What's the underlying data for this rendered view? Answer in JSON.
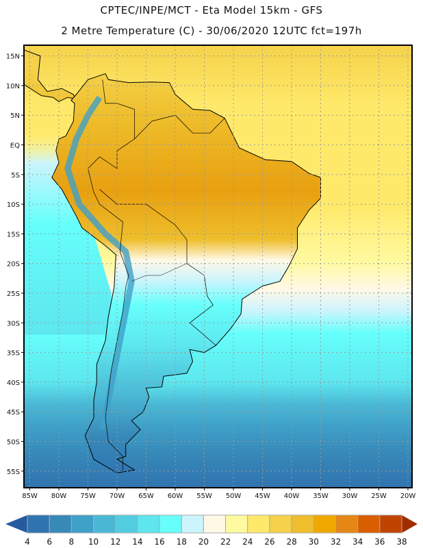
{
  "header": {
    "title": "CPTEC/INPE/MCT -  Eta Model 15km - GFS",
    "subtitle": "2 Metre Temperature (C) - 30/06/2020 12UTC fct=197h"
  },
  "map": {
    "lat_labels": [
      "15N",
      "10N",
      "5N",
      "EQ",
      "5S",
      "10S",
      "15S",
      "20S",
      "25S",
      "30S",
      "35S",
      "40S",
      "45S",
      "50S",
      "55S"
    ],
    "lat_values": [
      15,
      10,
      5,
      0,
      -5,
      -10,
      -15,
      -20,
      -25,
      -30,
      -35,
      -40,
      -45,
      -50,
      -55
    ],
    "lon_labels": [
      "85W",
      "80W",
      "75W",
      "70W",
      "65W",
      "60W",
      "55W",
      "50W",
      "45W",
      "40W",
      "35W",
      "30W",
      "25W",
      "20W"
    ],
    "lon_values": [
      -85,
      -80,
      -75,
      -70,
      -65,
      -60,
      -55,
      -50,
      -45,
      -40,
      -35,
      -30,
      -25,
      -20
    ]
  },
  "colorbar": {
    "labels": [
      "4",
      "6",
      "8",
      "10",
      "12",
      "14",
      "16",
      "18",
      "20",
      "22",
      "24",
      "26",
      "28",
      "30",
      "32",
      "34",
      "36",
      "38"
    ],
    "colors": [
      "#2f73b0",
      "#3789b8",
      "#3fa0c8",
      "#4ab8d5",
      "#52cde0",
      "#5de6ee",
      "#66fffb",
      "#ccf4fd",
      "#fff8e6",
      "#fffaa0",
      "#ffe96a",
      "#f5d24a",
      "#eebe2c",
      "#f0a800",
      "#e58714",
      "#d95e00",
      "#c04400"
    ],
    "under_color": "#2559a0",
    "over_color": "#a02c00"
  }
}
